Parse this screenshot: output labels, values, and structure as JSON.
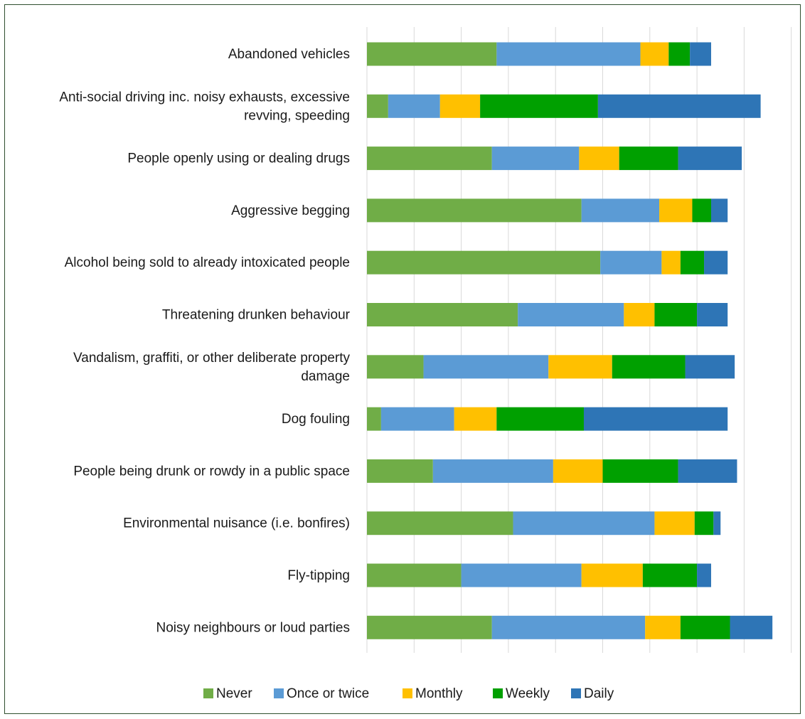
{
  "chart_data": {
    "type": "bar",
    "orientation": "horizontal",
    "stacked": true,
    "title": "",
    "xlabel": "",
    "ylabel": "",
    "grid": true,
    "legend_position": "bottom",
    "categories": [
      "Abandoned vehicles",
      [
        "Anti-social driving inc. noisy exhausts, excessive",
        "revving, speeding"
      ],
      "People openly using or dealing drugs",
      "Aggressive begging",
      "Alcohol being sold to already intoxicated people",
      "Threatening drunken behaviour",
      [
        "Vandalism, graffiti, or other deliberate property",
        "damage"
      ],
      "Dog fouling",
      "People being drunk or rowdy in a public space",
      "Environmental nuisance (i.e. bonfires)",
      "Fly-tipping",
      "Noisy neighbours or loud parties"
    ],
    "series": [
      {
        "name": "Never",
        "color": "#70ad47",
        "values": [
          55,
          9,
          53,
          91,
          99,
          64,
          24,
          6,
          28,
          62,
          40,
          53
        ]
      },
      {
        "name": "Once or twice",
        "color": "#5b9bd5",
        "values": [
          61,
          22,
          37,
          33,
          26,
          45,
          53,
          31,
          51,
          60,
          51,
          65
        ]
      },
      {
        "name": "Monthly",
        "color": "#ffc000",
        "values": [
          12,
          17,
          17,
          14,
          8,
          13,
          27,
          18,
          21,
          17,
          26,
          15
        ]
      },
      {
        "name": "Weekly",
        "color": "#00a000",
        "values": [
          9,
          50,
          25,
          8,
          10,
          18,
          31,
          37,
          32,
          8,
          23,
          21
        ]
      },
      {
        "name": "Daily",
        "color": "#2e75b6",
        "values": [
          9,
          69,
          27,
          7,
          10,
          13,
          21,
          61,
          25,
          3,
          6,
          18
        ]
      }
    ],
    "xlim": [
      0,
      180
    ],
    "grid_step": 20
  }
}
